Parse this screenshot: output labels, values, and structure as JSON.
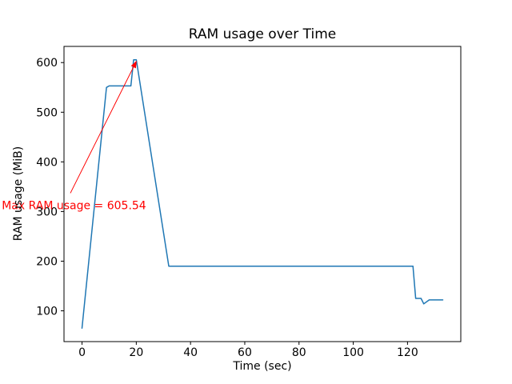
{
  "chart_data": {
    "type": "line",
    "title": "RAM usage over Time",
    "xlabel": "Time (sec)",
    "ylabel": "RAM usage (MiB)",
    "x": [
      0,
      9,
      10,
      18,
      19,
      20,
      32,
      122,
      123,
      125,
      126,
      128,
      133
    ],
    "y": [
      65,
      550,
      553,
      553,
      605.54,
      605.54,
      190,
      190,
      125,
      125,
      114,
      122,
      122
    ],
    "xlim": [
      -6.65,
      139.65
    ],
    "ylim": [
      38,
      632.6
    ],
    "xticks": [
      0,
      20,
      40,
      60,
      80,
      100,
      120
    ],
    "yticks": [
      100,
      200,
      300,
      400,
      500,
      600
    ],
    "line_color": "#1f77b4",
    "grid": false,
    "legend": null,
    "annotation": {
      "text": "Max RAM usage = 605.54",
      "color": "#ff0000",
      "text_pos": [
        -29.6,
        313
      ],
      "arrow_from": [
        -4.3,
        337
      ],
      "arrow_to": [
        20,
        605.54
      ]
    }
  }
}
